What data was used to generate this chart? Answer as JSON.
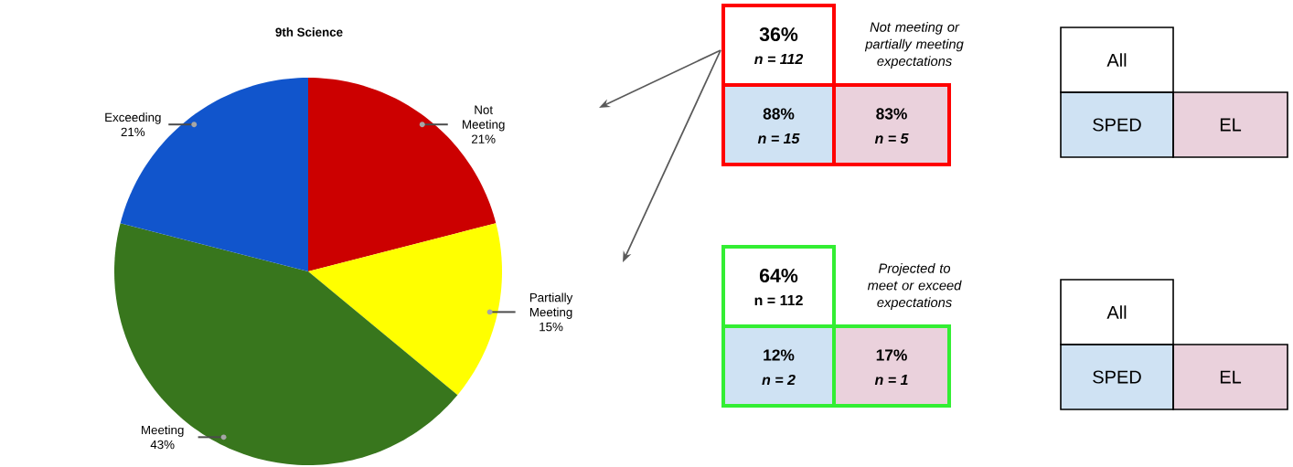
{
  "chart_data": [
    {
      "type": "pie",
      "title": "9th Science",
      "categories": [
        "Not Meeting",
        "Partially Meeting",
        "Meeting",
        "Exceeding"
      ],
      "values": [
        21,
        15,
        43,
        21
      ],
      "value_labels": [
        "21%",
        "15%",
        "43%",
        "21%"
      ],
      "colors": [
        "#cc0000",
        "#ffff00",
        "#38761d",
        "#1155cc"
      ]
    },
    {
      "type": "other",
      "title": "Not meeting or partially meeting expectations",
      "annotations": [
        "36%",
        "n = 112",
        "88%",
        "n = 15",
        "83%",
        "n = 5"
      ]
    },
    {
      "type": "other",
      "title": "Projected to meet or exceed expectations",
      "annotations": [
        "64%",
        "n = 112",
        "12%",
        "n = 2",
        "17%",
        "n = 1"
      ]
    },
    {
      "type": "other",
      "annotations": [
        "All",
        "SPED",
        "EL"
      ]
    },
    {
      "type": "other",
      "annotations": [
        "All",
        "SPED",
        "EL"
      ]
    }
  ]
}
